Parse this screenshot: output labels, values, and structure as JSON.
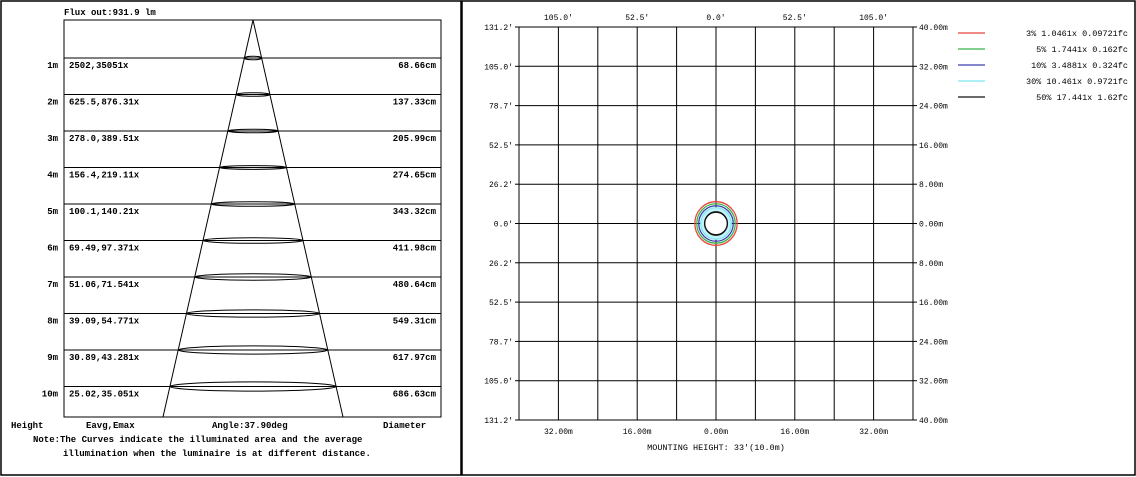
{
  "chart_data": [
    {
      "type": "table",
      "flux_label": "Flux out:931.9 lm",
      "rows": [
        {
          "height": "1m",
          "eavg_emax": "2502,35051x",
          "diameter": "68.66cm"
        },
        {
          "height": "2m",
          "eavg_emax": "625.5,876.31x",
          "diameter": "137.33cm"
        },
        {
          "height": "3m",
          "eavg_emax": "278.0,389.51x",
          "diameter": "205.99cm"
        },
        {
          "height": "4m",
          "eavg_emax": "156.4,219.11x",
          "diameter": "274.65cm"
        },
        {
          "height": "5m",
          "eavg_emax": "100.1,140.21x",
          "diameter": "343.32cm"
        },
        {
          "height": "6m",
          "eavg_emax": "69.49,97.371x",
          "diameter": "411.98cm"
        },
        {
          "height": "7m",
          "eavg_emax": "51.06,71.541x",
          "diameter": "480.64cm"
        },
        {
          "height": "8m",
          "eavg_emax": "39.09,54.771x",
          "diameter": "549.31cm"
        },
        {
          "height": "9m",
          "eavg_emax": "30.89,43.281x",
          "diameter": "617.97cm"
        },
        {
          "height": "10m",
          "eavg_emax": "25.02,35.051x",
          "diameter": "686.63cm"
        }
      ],
      "footer": {
        "height": "Height",
        "eavg": "Eavg,Emax",
        "angle": "Angle:37.90deg",
        "diameter": "Diameter"
      },
      "note_line1": "Note:The Curves indicate the illuminated area and the average",
      "note_line2": "illumination when the luminaire is at different distance."
    },
    {
      "type": "line",
      "top_ticks": [
        "105.0'",
        "52.5'",
        "0.0'",
        "52.5'",
        "105.0'"
      ],
      "left_ticks": [
        "131.2'",
        "105.0'",
        "78.7'",
        "52.5'",
        "26.2'",
        "0.0'",
        "26.2'",
        "52.5'",
        "78.7'",
        "105.0'",
        "131.2'"
      ],
      "right_ticks": [
        "40.00m",
        "32.00m",
        "24.00m",
        "16.00m",
        "8.00m",
        "0.00m",
        "8.00m",
        "16.00m",
        "24.00m",
        "32.00m",
        "40.00m"
      ],
      "bottom_ticks": [
        "32.00m",
        "16.00m",
        "0.00m",
        "16.00m",
        "32.00m"
      ],
      "xlabel": "MOUNTING HEIGHT: 33'(10.0m)",
      "series": [
        {
          "name": "3% 1.0461x 0.09721fc",
          "color": "#e8453c",
          "radius": 4.3
        },
        {
          "name": "5% 1.7441x 0.162fc",
          "color": "#3bb54a",
          "radius": 3.9
        },
        {
          "name": "10% 3.4881x 0.324fc",
          "color": "#3a3fb0",
          "radius": 3.5
        },
        {
          "name": "30% 10.461x 0.9721fc",
          "color": "#7fe6f2",
          "radius": 3.1
        },
        {
          "name": "50% 17.441x 1.62fc",
          "color": "#111111",
          "radius": 2.3
        }
      ],
      "legend_position": "top-right"
    }
  ]
}
